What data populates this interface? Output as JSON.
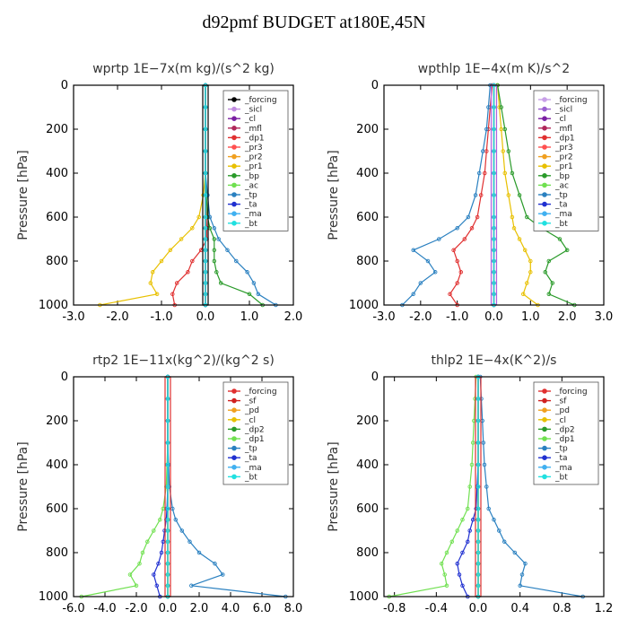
{
  "figure_title": "d92pmf  BUDGET at180E,45N",
  "chart_data": [
    {
      "type": "line",
      "title": "wprtp   1E−7x(m kg)/(s^2 kg)",
      "ylabel": "Pressure [hPa]",
      "xlim": [
        -3.0,
        2.0
      ],
      "ylim": [
        1000,
        0
      ],
      "x_ticks": [
        "-3.0",
        "-2.0",
        "-1.0",
        "0.0",
        "1.0",
        "2.0"
      ],
      "y_ticks": [
        "0",
        "200",
        "400",
        "600",
        "800",
        "1000"
      ],
      "pressure": [
        0,
        100,
        200,
        300,
        400,
        500,
        600,
        650,
        700,
        750,
        800,
        850,
        900,
        950,
        1000
      ],
      "series": [
        {
          "name": "_forcing",
          "color": "#000000",
          "values": [
            0,
            0,
            0,
            0,
            0,
            0,
            0,
            0,
            0,
            0,
            0,
            0,
            0,
            0,
            0
          ]
        },
        {
          "name": "_sicl",
          "color": "#c08be0",
          "values": [
            0,
            0,
            0,
            0,
            0,
            0,
            0,
            0,
            0,
            0,
            0,
            0,
            0,
            0,
            0
          ]
        },
        {
          "name": "_cl",
          "color": "#7a1fa2",
          "values": [
            0,
            0,
            0,
            0,
            0,
            0,
            0,
            0,
            0,
            0,
            0,
            0,
            0,
            0,
            0
          ]
        },
        {
          "name": "_mfl",
          "color": "#b0285a",
          "values": [
            0,
            0,
            0,
            0,
            0,
            0,
            0,
            0,
            0,
            0,
            0,
            0,
            0,
            0,
            0
          ]
        },
        {
          "name": "_dp1",
          "color": "#e03030",
          "values": [
            0,
            0,
            0,
            0,
            0,
            0,
            0.02,
            0.03,
            0.03,
            -0.1,
            -0.3,
            -0.4,
            -0.65,
            -0.75,
            -0.7
          ]
        },
        {
          "name": "_pr3",
          "color": "#ff5050",
          "values": [
            0,
            0,
            0,
            0,
            0,
            0,
            0,
            0,
            0,
            0,
            0,
            0,
            0,
            0,
            0
          ]
        },
        {
          "name": "_pr2",
          "color": "#f0a020",
          "values": [
            0,
            0,
            0,
            0,
            0,
            0,
            0,
            0,
            0,
            0,
            0,
            0,
            0,
            0,
            0
          ]
        },
        {
          "name": "_pr1",
          "color": "#e8c000",
          "values": [
            0,
            0,
            0,
            0,
            0,
            -0.05,
            -0.15,
            -0.3,
            -0.55,
            -0.8,
            -1.0,
            -1.2,
            -1.25,
            -1.1,
            -2.4
          ]
        },
        {
          "name": "_bp",
          "color": "#2a9a2a",
          "values": [
            0,
            0,
            0,
            0,
            0,
            0.02,
            0.05,
            0.1,
            0.2,
            0.2,
            0.2,
            0.25,
            0.35,
            1.0,
            1.3
          ]
        },
        {
          "name": "_ac",
          "color": "#70e050",
          "values": [
            0,
            0,
            0,
            0,
            0,
            0,
            0,
            0,
            0,
            0,
            0,
            0,
            0,
            0,
            0
          ]
        },
        {
          "name": "_tp",
          "color": "#2a80c0",
          "values": [
            0,
            0,
            0,
            0,
            0,
            0.05,
            0.1,
            0.2,
            0.3,
            0.5,
            0.7,
            0.95,
            1.1,
            1.2,
            1.6
          ]
        },
        {
          "name": "_ta",
          "color": "#2030d0",
          "values": [
            0,
            0,
            0,
            0,
            0,
            0,
            0,
            0,
            0,
            0,
            0,
            0,
            0,
            0,
            0
          ]
        },
        {
          "name": "_ma",
          "color": "#40b0f0",
          "values": [
            0,
            0,
            0,
            0,
            0,
            0,
            0,
            0,
            0,
            0,
            0,
            0,
            0,
            0,
            0
          ]
        },
        {
          "name": "_bt",
          "color": "#20e0e0",
          "values": [
            0,
            0,
            0,
            0,
            0,
            0,
            0,
            0,
            0,
            0,
            0,
            0,
            0,
            0,
            0
          ]
        }
      ]
    },
    {
      "type": "line",
      "title": "wpthlp   1E−4x(m K)/s^2",
      "ylabel": "Pressure [hPa]",
      "xlim": [
        -3.0,
        3.0
      ],
      "ylim": [
        1000,
        0
      ],
      "x_ticks": [
        "-3.0",
        "-2.0",
        "-1.0",
        "0.0",
        "1.0",
        "2.0",
        "3.0"
      ],
      "y_ticks": [
        "0",
        "200",
        "400",
        "600",
        "800",
        "1000"
      ],
      "pressure": [
        0,
        100,
        200,
        300,
        400,
        500,
        600,
        650,
        700,
        750,
        800,
        850,
        900,
        950,
        1000
      ],
      "series": [
        {
          "name": "_forcing",
          "color": "#c8a0e8",
          "values": [
            0,
            0,
            0,
            0,
            0,
            0,
            0,
            0,
            0,
            0,
            0,
            0,
            0,
            0,
            0
          ]
        },
        {
          "name": "_sicl",
          "color": "#9a60d0",
          "values": [
            0,
            0,
            0,
            0,
            0,
            0,
            0,
            0,
            0,
            0,
            0,
            0,
            0,
            0,
            0
          ]
        },
        {
          "name": "_cl",
          "color": "#7a1fa2",
          "values": [
            0,
            0,
            0,
            0,
            0,
            0,
            0,
            0,
            0,
            0,
            0,
            0,
            0,
            0,
            0
          ]
        },
        {
          "name": "_mfl",
          "color": "#b0285a",
          "values": [
            0,
            0,
            0,
            0,
            0,
            0,
            0,
            0,
            0,
            0,
            0,
            0,
            0,
            0,
            0
          ]
        },
        {
          "name": "_dp1",
          "color": "#e03030",
          "values": [
            -0.05,
            -0.1,
            -0.15,
            -0.2,
            -0.25,
            -0.35,
            -0.45,
            -0.6,
            -0.8,
            -1.1,
            -1.0,
            -0.9,
            -1.0,
            -1.2,
            -1.0
          ]
        },
        {
          "name": "_pr3",
          "color": "#ff5050",
          "values": [
            0,
            0,
            0,
            0,
            0,
            0,
            0,
            0,
            0,
            0,
            0,
            0,
            0,
            0,
            0
          ]
        },
        {
          "name": "_pr2",
          "color": "#f0a020",
          "values": [
            0,
            0,
            0,
            0,
            0,
            0,
            0,
            0,
            0,
            0,
            0,
            0,
            0,
            0,
            0
          ]
        },
        {
          "name": "_pr1",
          "color": "#e8c000",
          "values": [
            0.1,
            0.15,
            0.2,
            0.25,
            0.3,
            0.4,
            0.5,
            0.55,
            0.7,
            0.85,
            1.0,
            1.0,
            0.9,
            0.8,
            1.2
          ]
        },
        {
          "name": "_bp",
          "color": "#2a9a2a",
          "values": [
            0.1,
            0.2,
            0.3,
            0.4,
            0.5,
            0.7,
            0.9,
            1.3,
            1.8,
            2.0,
            1.5,
            1.4,
            1.6,
            1.5,
            2.2
          ]
        },
        {
          "name": "_ac",
          "color": "#70e050",
          "values": [
            0,
            0,
            0,
            0,
            0,
            0,
            0,
            0,
            0,
            0,
            0,
            0,
            0,
            0,
            0
          ]
        },
        {
          "name": "_tp",
          "color": "#2a80c0",
          "values": [
            -0.1,
            -0.15,
            -0.2,
            -0.3,
            -0.4,
            -0.5,
            -0.7,
            -1.0,
            -1.5,
            -2.2,
            -1.8,
            -1.6,
            -2.0,
            -2.2,
            -2.5
          ]
        },
        {
          "name": "_ta",
          "color": "#2030d0",
          "values": [
            0,
            0,
            0,
            0,
            0,
            0,
            0,
            0,
            0,
            0,
            0,
            0,
            0,
            0,
            0
          ]
        },
        {
          "name": "_ma",
          "color": "#40b0f0",
          "values": [
            0,
            0,
            0,
            0,
            0,
            0,
            0,
            0,
            0,
            0,
            0,
            0,
            0,
            0,
            0
          ]
        },
        {
          "name": "_bt",
          "color": "#20e0e0",
          "values": [
            0,
            0,
            0,
            0,
            0,
            0,
            0,
            0,
            0,
            0,
            0,
            0,
            0,
            0,
            0
          ]
        }
      ]
    },
    {
      "type": "line",
      "title": "rtp2   1E−11x(kg^2)/(kg^2 s)",
      "ylabel": "Pressure [hPa]",
      "xlim": [
        -6.0,
        8.0
      ],
      "ylim": [
        1000,
        0
      ],
      "x_ticks": [
        "-6.0",
        "-4.0",
        "-2.0",
        "0.0",
        "2.0",
        "4.0",
        "6.0",
        "8.0"
      ],
      "y_ticks": [
        "0",
        "200",
        "400",
        "600",
        "800",
        "1000"
      ],
      "pressure": [
        0,
        100,
        200,
        300,
        400,
        500,
        600,
        650,
        700,
        750,
        800,
        850,
        900,
        950,
        1000
      ],
      "series": [
        {
          "name": "_forcing",
          "color": "#e03030",
          "values": [
            0,
            0,
            0,
            0,
            0,
            0,
            0,
            0,
            0,
            0,
            0,
            0,
            0,
            0,
            0
          ]
        },
        {
          "name": "_sf",
          "color": "#d02020",
          "values": [
            0,
            0,
            0,
            0,
            0,
            0,
            0,
            0,
            0,
            0,
            0,
            0,
            0,
            0,
            0
          ]
        },
        {
          "name": "_pd",
          "color": "#f0a020",
          "values": [
            0,
            0,
            0,
            0,
            0,
            0,
            0,
            0,
            0,
            0,
            0,
            0,
            0,
            0,
            0
          ]
        },
        {
          "name": "_cl",
          "color": "#e8c000",
          "values": [
            0,
            0,
            0,
            0,
            0,
            0,
            0,
            0,
            0,
            0,
            0,
            0,
            0,
            0,
            0
          ]
        },
        {
          "name": "_dp2",
          "color": "#2a9a2a",
          "values": [
            0,
            0,
            0,
            0,
            0,
            0,
            0,
            0,
            0,
            0,
            0,
            0,
            0,
            0,
            0
          ]
        },
        {
          "name": "_dp1",
          "color": "#70e050",
          "values": [
            0,
            0,
            0,
            0,
            -0.05,
            -0.1,
            -0.3,
            -0.5,
            -0.9,
            -1.3,
            -1.6,
            -1.8,
            -2.4,
            -2.0,
            -5.5
          ]
        },
        {
          "name": "_tp",
          "color": "#2a80c0",
          "values": [
            0,
            0,
            0,
            0,
            0.05,
            0.1,
            0.3,
            0.5,
            0.9,
            1.4,
            2.0,
            3.0,
            3.5,
            1.5,
            7.5
          ]
        },
        {
          "name": "_ta",
          "color": "#2030d0",
          "values": [
            0,
            0,
            0,
            0,
            0,
            0,
            -0.05,
            -0.1,
            -0.2,
            -0.3,
            -0.4,
            -0.6,
            -0.9,
            -0.7,
            -0.5
          ]
        },
        {
          "name": "_ma",
          "color": "#40b0f0",
          "values": [
            0,
            0,
            0,
            0,
            0,
            0,
            0,
            0,
            0,
            0,
            0,
            0,
            0,
            0,
            0
          ]
        },
        {
          "name": "_bt",
          "color": "#20e0e0",
          "values": [
            0,
            0,
            0,
            0,
            0,
            0,
            0,
            0,
            0,
            0,
            0,
            0,
            0,
            0,
            0
          ]
        }
      ]
    },
    {
      "type": "line",
      "title": "thlp2   1E−4x(K^2)/s",
      "ylabel": "Pressure [hPa]",
      "xlim": [
        -0.9,
        1.2
      ],
      "ylim": [
        1000,
        0
      ],
      "x_ticks": [
        "-0.8",
        "-0.4",
        "0.0",
        "0.4",
        "0.8",
        "1.2"
      ],
      "y_ticks": [
        "0",
        "200",
        "400",
        "600",
        "800",
        "1000"
      ],
      "pressure": [
        0,
        100,
        200,
        300,
        400,
        500,
        600,
        650,
        700,
        750,
        800,
        850,
        900,
        950,
        1000
      ],
      "series": [
        {
          "name": "_forcing",
          "color": "#e03030",
          "values": [
            0,
            0,
            0,
            0,
            0,
            0,
            0,
            0,
            0,
            0,
            0,
            0,
            0,
            0,
            0
          ]
        },
        {
          "name": "_sf",
          "color": "#d02020",
          "values": [
            0,
            0,
            0,
            0,
            0,
            0,
            0,
            0,
            0,
            0,
            0,
            0,
            0,
            0,
            0
          ]
        },
        {
          "name": "_pd",
          "color": "#f0a020",
          "values": [
            0,
            0,
            0,
            0,
            0,
            0,
            0,
            0,
            0,
            0,
            0,
            0,
            0,
            0,
            0
          ]
        },
        {
          "name": "_cl",
          "color": "#e8c000",
          "values": [
            0,
            0,
            0,
            0,
            0,
            0,
            0,
            0,
            0,
            0,
            0,
            0,
            0,
            0,
            0
          ]
        },
        {
          "name": "_dp2",
          "color": "#2a9a2a",
          "values": [
            0,
            0,
            0,
            0,
            0,
            0,
            0,
            0,
            0,
            0,
            0,
            0,
            0,
            0,
            0
          ]
        },
        {
          "name": "_dp1",
          "color": "#70e050",
          "values": [
            -0.02,
            -0.03,
            -0.04,
            -0.05,
            -0.06,
            -0.08,
            -0.1,
            -0.15,
            -0.2,
            -0.25,
            -0.3,
            -0.35,
            -0.32,
            -0.3,
            -0.85
          ]
        },
        {
          "name": "_tp",
          "color": "#2a80c0",
          "values": [
            0.02,
            0.03,
            0.04,
            0.05,
            0.06,
            0.08,
            0.1,
            0.15,
            0.2,
            0.25,
            0.35,
            0.45,
            0.42,
            0.4,
            1.0
          ]
        },
        {
          "name": "_ta",
          "color": "#2030d0",
          "values": [
            0,
            0,
            0,
            0,
            0,
            -0.01,
            -0.02,
            -0.05,
            -0.08,
            -0.1,
            -0.15,
            -0.2,
            -0.18,
            -0.15,
            -0.1
          ]
        },
        {
          "name": "_ma",
          "color": "#40b0f0",
          "values": [
            0,
            0,
            0,
            0,
            0,
            0,
            0,
            0,
            0,
            0,
            0,
            0,
            0,
            0,
            0
          ]
        },
        {
          "name": "_bt",
          "color": "#20e0e0",
          "values": [
            0,
            0,
            0,
            0,
            0,
            0,
            0,
            0,
            0,
            0,
            0,
            0,
            0,
            0,
            0
          ]
        }
      ]
    }
  ]
}
